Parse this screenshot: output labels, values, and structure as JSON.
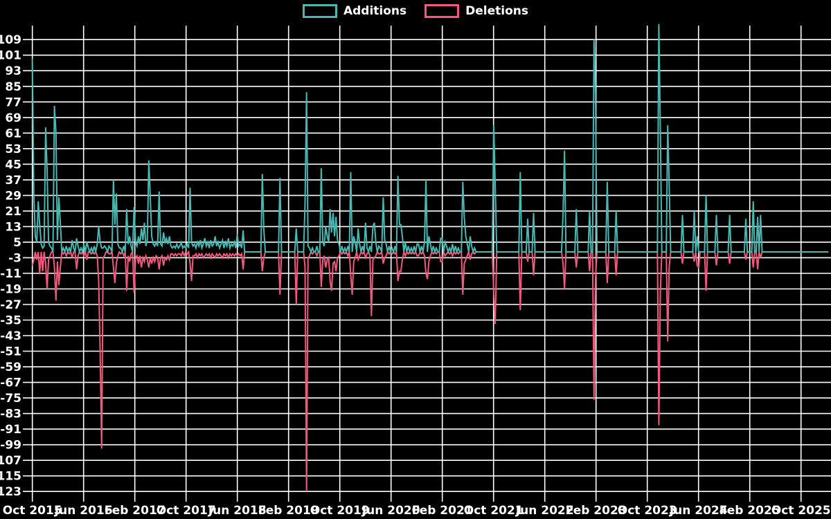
{
  "legend": {
    "items": [
      {
        "label": "Additions",
        "color": "#49b8b2"
      },
      {
        "label": "Deletions",
        "color": "#f2597c"
      }
    ]
  },
  "colors": {
    "background": "#000000",
    "grid": "#ffffff",
    "text": "#ffffff",
    "additions": "#49b8b2",
    "deletions": "#f2597c"
  },
  "chart_data": {
    "type": "line",
    "title": "",
    "xlabel": "",
    "ylabel": "",
    "x_unit": "week",
    "n_points": 541,
    "x_tick_labels": [
      "Oct 2015",
      "Jun 2016",
      "Feb 2017",
      "Oct 2017",
      "Jun 2018",
      "Feb 2019",
      "Oct 2019",
      "Jun 2020",
      "Feb 2021",
      "Oct 2021",
      "Jun 2022",
      "Feb 2023",
      "Oct 2023",
      "Jun 2024",
      "Feb 2025",
      "Oct 2025"
    ],
    "weeks_per_tick_interval": 34.76,
    "y_ticks": [
      109,
      101,
      93,
      85,
      77,
      69,
      61,
      53,
      45,
      37,
      29,
      21,
      13,
      5,
      -3,
      -11,
      -19,
      -27,
      -35,
      -43,
      -51,
      -59,
      -67,
      -75,
      -83,
      -91,
      -99,
      -107,
      -115,
      -123
    ],
    "ylim": [
      -125,
      117
    ],
    "grid": true,
    "legend_position": "top-center",
    "series": [
      {
        "name": "Additions",
        "color": "#49b8b2",
        "default_value": 0,
        "sparse": {
          "0": 99,
          "1": 30,
          "2": 8,
          "3": 5,
          "4": 26,
          "5": 14,
          "6": 4,
          "7": 2,
          "8": 3,
          "9": 64,
          "10": 42,
          "11": 5,
          "12": 3,
          "13": 2,
          "15": 75,
          "16": 61,
          "17": 6,
          "18": 28,
          "19": 15,
          "21": 2,
          "23": 3,
          "25": 2,
          "27": 6,
          "28": 2,
          "30": 7,
          "31": 3,
          "33": 2,
          "35": 4,
          "37": 5,
          "38": 2,
          "40": 2,
          "42": 3,
          "44": 4,
          "45": 13,
          "46": 5,
          "47": 2,
          "48": 2,
          "49": 3,
          "50": 2,
          "52": 3,
          "53": 2,
          "55": 37,
          "56": 14,
          "57": 30,
          "58": 4,
          "59": 2,
          "60": 2,
          "62": 3,
          "64": 22,
          "65": 4,
          "66": 8,
          "67": 3,
          "69": 23,
          "70": 5,
          "71": 3,
          "72": 8,
          "73": 4,
          "74": 12,
          "75": 6,
          "76": 15,
          "77": 3,
          "78": 6,
          "79": 47,
          "80": 28,
          "81": 8,
          "82": 4,
          "83": 3,
          "84": 5,
          "85": 3,
          "86": 31,
          "87": 4,
          "88": 3,
          "89": 10,
          "90": 5,
          "91": 7,
          "92": 4,
          "93": 8,
          "94": 3,
          "95": 2,
          "96": 3,
          "97": 2,
          "98": 4,
          "99": 2,
          "100": 3,
          "101": 5,
          "102": 2,
          "103": 3,
          "104": 2,
          "105": 4,
          "106": 2,
          "107": 33,
          "108": 5,
          "109": 3,
          "110": 4,
          "111": 2,
          "112": 5,
          "113": 3,
          "114": 6,
          "115": 2,
          "116": 4,
          "117": 7,
          "118": 3,
          "119": 5,
          "120": 2,
          "121": 6,
          "122": 3,
          "123": 4,
          "124": 8,
          "125": 3,
          "126": 5,
          "127": 2,
          "128": 4,
          "129": 6,
          "130": 2,
          "131": 5,
          "132": 3,
          "133": 7,
          "134": 2,
          "135": 4,
          "136": 3,
          "137": 5,
          "138": 2,
          "139": 9,
          "140": 3,
          "141": 4,
          "142": 2,
          "143": 11,
          "156": 40,
          "157": 12,
          "168": 38,
          "179": 12,
          "185": 25,
          "186": 82,
          "187": 3,
          "188": 2,
          "190": 2,
          "193": 3,
          "196": 43,
          "197": 5,
          "198": 3,
          "199": 13,
          "200": 8,
          "201": 5,
          "202": 22,
          "203": 10,
          "204": 20,
          "205": 8,
          "206": 18,
          "207": 6,
          "208": 4,
          "210": 3,
          "212": 2,
          "214": 3,
          "216": 41,
          "218": 8,
          "219": 5,
          "221": 12,
          "222": 4,
          "224": 3,
          "226": 15,
          "227": 2,
          "229": 3,
          "231": 13,
          "232": 15,
          "233": 5,
          "235": 3,
          "236": 2,
          "238": 28,
          "239": 6,
          "240": 4,
          "242": 3,
          "244": 2,
          "246": 3,
          "248": 39,
          "249": 14,
          "250": 14,
          "251": 8,
          "253": 5,
          "255": 3,
          "257": 2,
          "259": 3,
          "261": 4,
          "262": 4,
          "264": 3,
          "266": 5,
          "267": 37,
          "269": 8,
          "270": 4,
          "272": 3,
          "274": 2,
          "277": 7,
          "278": 7,
          "280": 5,
          "281": 3,
          "283": 2,
          "285": 4,
          "287": 3,
          "289": 2,
          "292": 36,
          "293": 18,
          "294": 8,
          "295": 4,
          "297": 8,
          "298": 3,
          "300": 2,
          "313": 65,
          "314": 35,
          "331": 41,
          "336": 17,
          "340": 20,
          "360": 20,
          "361": 52,
          "369": 22,
          "378": 21,
          "381": 109,
          "382": 81,
          "390": 36,
          "396": 21,
          "425": 117,
          "426": 62,
          "431": 65,
          "432": 35,
          "441": 19,
          "449": 21,
          "451": 8,
          "457": 29,
          "464": 19,
          "473": 19,
          "484": 17,
          "489": 26,
          "492": 18,
          "494": 19
        }
      },
      {
        "name": "Deletions",
        "color": "#f2597c",
        "default_value": 0,
        "sparse": {
          "0": -7,
          "1": -4,
          "3": -4,
          "5": -11,
          "7": -10,
          "9": -6,
          "10": -19,
          "11": -4,
          "12": -2,
          "15": -8,
          "16": -25,
          "17": -5,
          "18": -17,
          "19": -8,
          "21": -1,
          "23": -2,
          "25": -1,
          "27": -3,
          "30": -9,
          "31": -2,
          "33": -1,
          "35": -2,
          "37": -4,
          "40": -1,
          "42": -1,
          "44": -2,
          "45": -15,
          "46": -51,
          "47": -101,
          "48": -3,
          "49": -2,
          "52": -1,
          "53": -1,
          "55": -8,
          "56": -16,
          "57": -6,
          "58": -2,
          "60": -1,
          "62": -2,
          "64": -20,
          "65": -2,
          "66": -5,
          "67": -1,
          "69": -21,
          "70": -3,
          "71": -2,
          "72": -6,
          "73": -2,
          "74": -8,
          "75": -3,
          "76": -5,
          "77": -2,
          "78": -4,
          "79": -8,
          "80": -3,
          "81": -6,
          "82": -3,
          "83": -5,
          "84": -2,
          "85": -3,
          "86": -9,
          "87": -3,
          "88": -2,
          "89": -7,
          "90": -3,
          "91": -4,
          "92": -2,
          "93": -4,
          "94": -1,
          "95": -1,
          "96": -2,
          "97": -1,
          "98": -2,
          "99": -1,
          "100": -1,
          "101": -2,
          "103": -2,
          "105": -1,
          "107": -6,
          "108": -15,
          "109": -2,
          "110": -2,
          "111": -1,
          "112": -3,
          "113": -1,
          "114": -2,
          "115": -1,
          "116": -3,
          "117": -2,
          "118": -1,
          "119": -2,
          "120": -1,
          "121": -3,
          "122": -1,
          "123": -2,
          "124": -3,
          "125": -1,
          "126": -2,
          "127": -1,
          "128": -2,
          "129": -3,
          "130": -1,
          "131": -2,
          "132": -1,
          "133": -3,
          "134": -1,
          "135": -2,
          "136": -1,
          "137": -2,
          "138": -1,
          "139": -2,
          "140": -1,
          "141": -2,
          "142": -1,
          "143": -9,
          "156": -10,
          "157": -3,
          "168": -22,
          "179": -27,
          "185": -8,
          "186": -123,
          "187": -3,
          "188": -2,
          "190": -1,
          "193": -2,
          "196": -18,
          "197": -4,
          "198": -2,
          "199": -8,
          "200": -4,
          "201": -3,
          "202": -15,
          "203": -20,
          "204": -6,
          "205": -5,
          "206": -10,
          "207": -3,
          "208": -2,
          "210": -1,
          "212": -1,
          "214": -2,
          "216": -12,
          "217": -22,
          "218": -5,
          "219": -3,
          "221": -4,
          "222": -2,
          "224": -1,
          "226": -3,
          "227": -1,
          "229": -2,
          "230": -33,
          "231": -4,
          "232": -3,
          "233": -2,
          "235": -1,
          "236": -1,
          "238": -6,
          "239": -3,
          "240": -2,
          "242": -1,
          "244": -1,
          "246": -1,
          "248": -15,
          "249": -10,
          "250": -10,
          "251": -4,
          "253": -2,
          "255": -1,
          "257": -1,
          "259": -1,
          "261": -2,
          "262": -2,
          "264": -1,
          "266": -2,
          "267": -11,
          "268": -14,
          "269": -5,
          "270": -2,
          "272": -1,
          "274": -1,
          "277": -5,
          "278": -5,
          "280": -2,
          "281": -1,
          "283": -1,
          "285": -2,
          "287": -1,
          "289": -1,
          "292": -22,
          "293": -6,
          "294": -4,
          "295": -2,
          "297": -4,
          "298": -1,
          "300": -1,
          "313": -21,
          "314": -37,
          "331": -30,
          "336": -5,
          "340": -12,
          "360": -6,
          "361": -19,
          "369": -8,
          "378": -10,
          "381": -76,
          "382": -14,
          "390": -16,
          "396": -12,
          "425": -89,
          "426": -20,
          "431": -46,
          "432": -8,
          "441": -6,
          "449": -5,
          "451": -7,
          "452": -8,
          "457": -20,
          "464": -7,
          "473": -6,
          "484": -4,
          "489": -8,
          "492": -9,
          "494": -3
        }
      }
    ]
  }
}
